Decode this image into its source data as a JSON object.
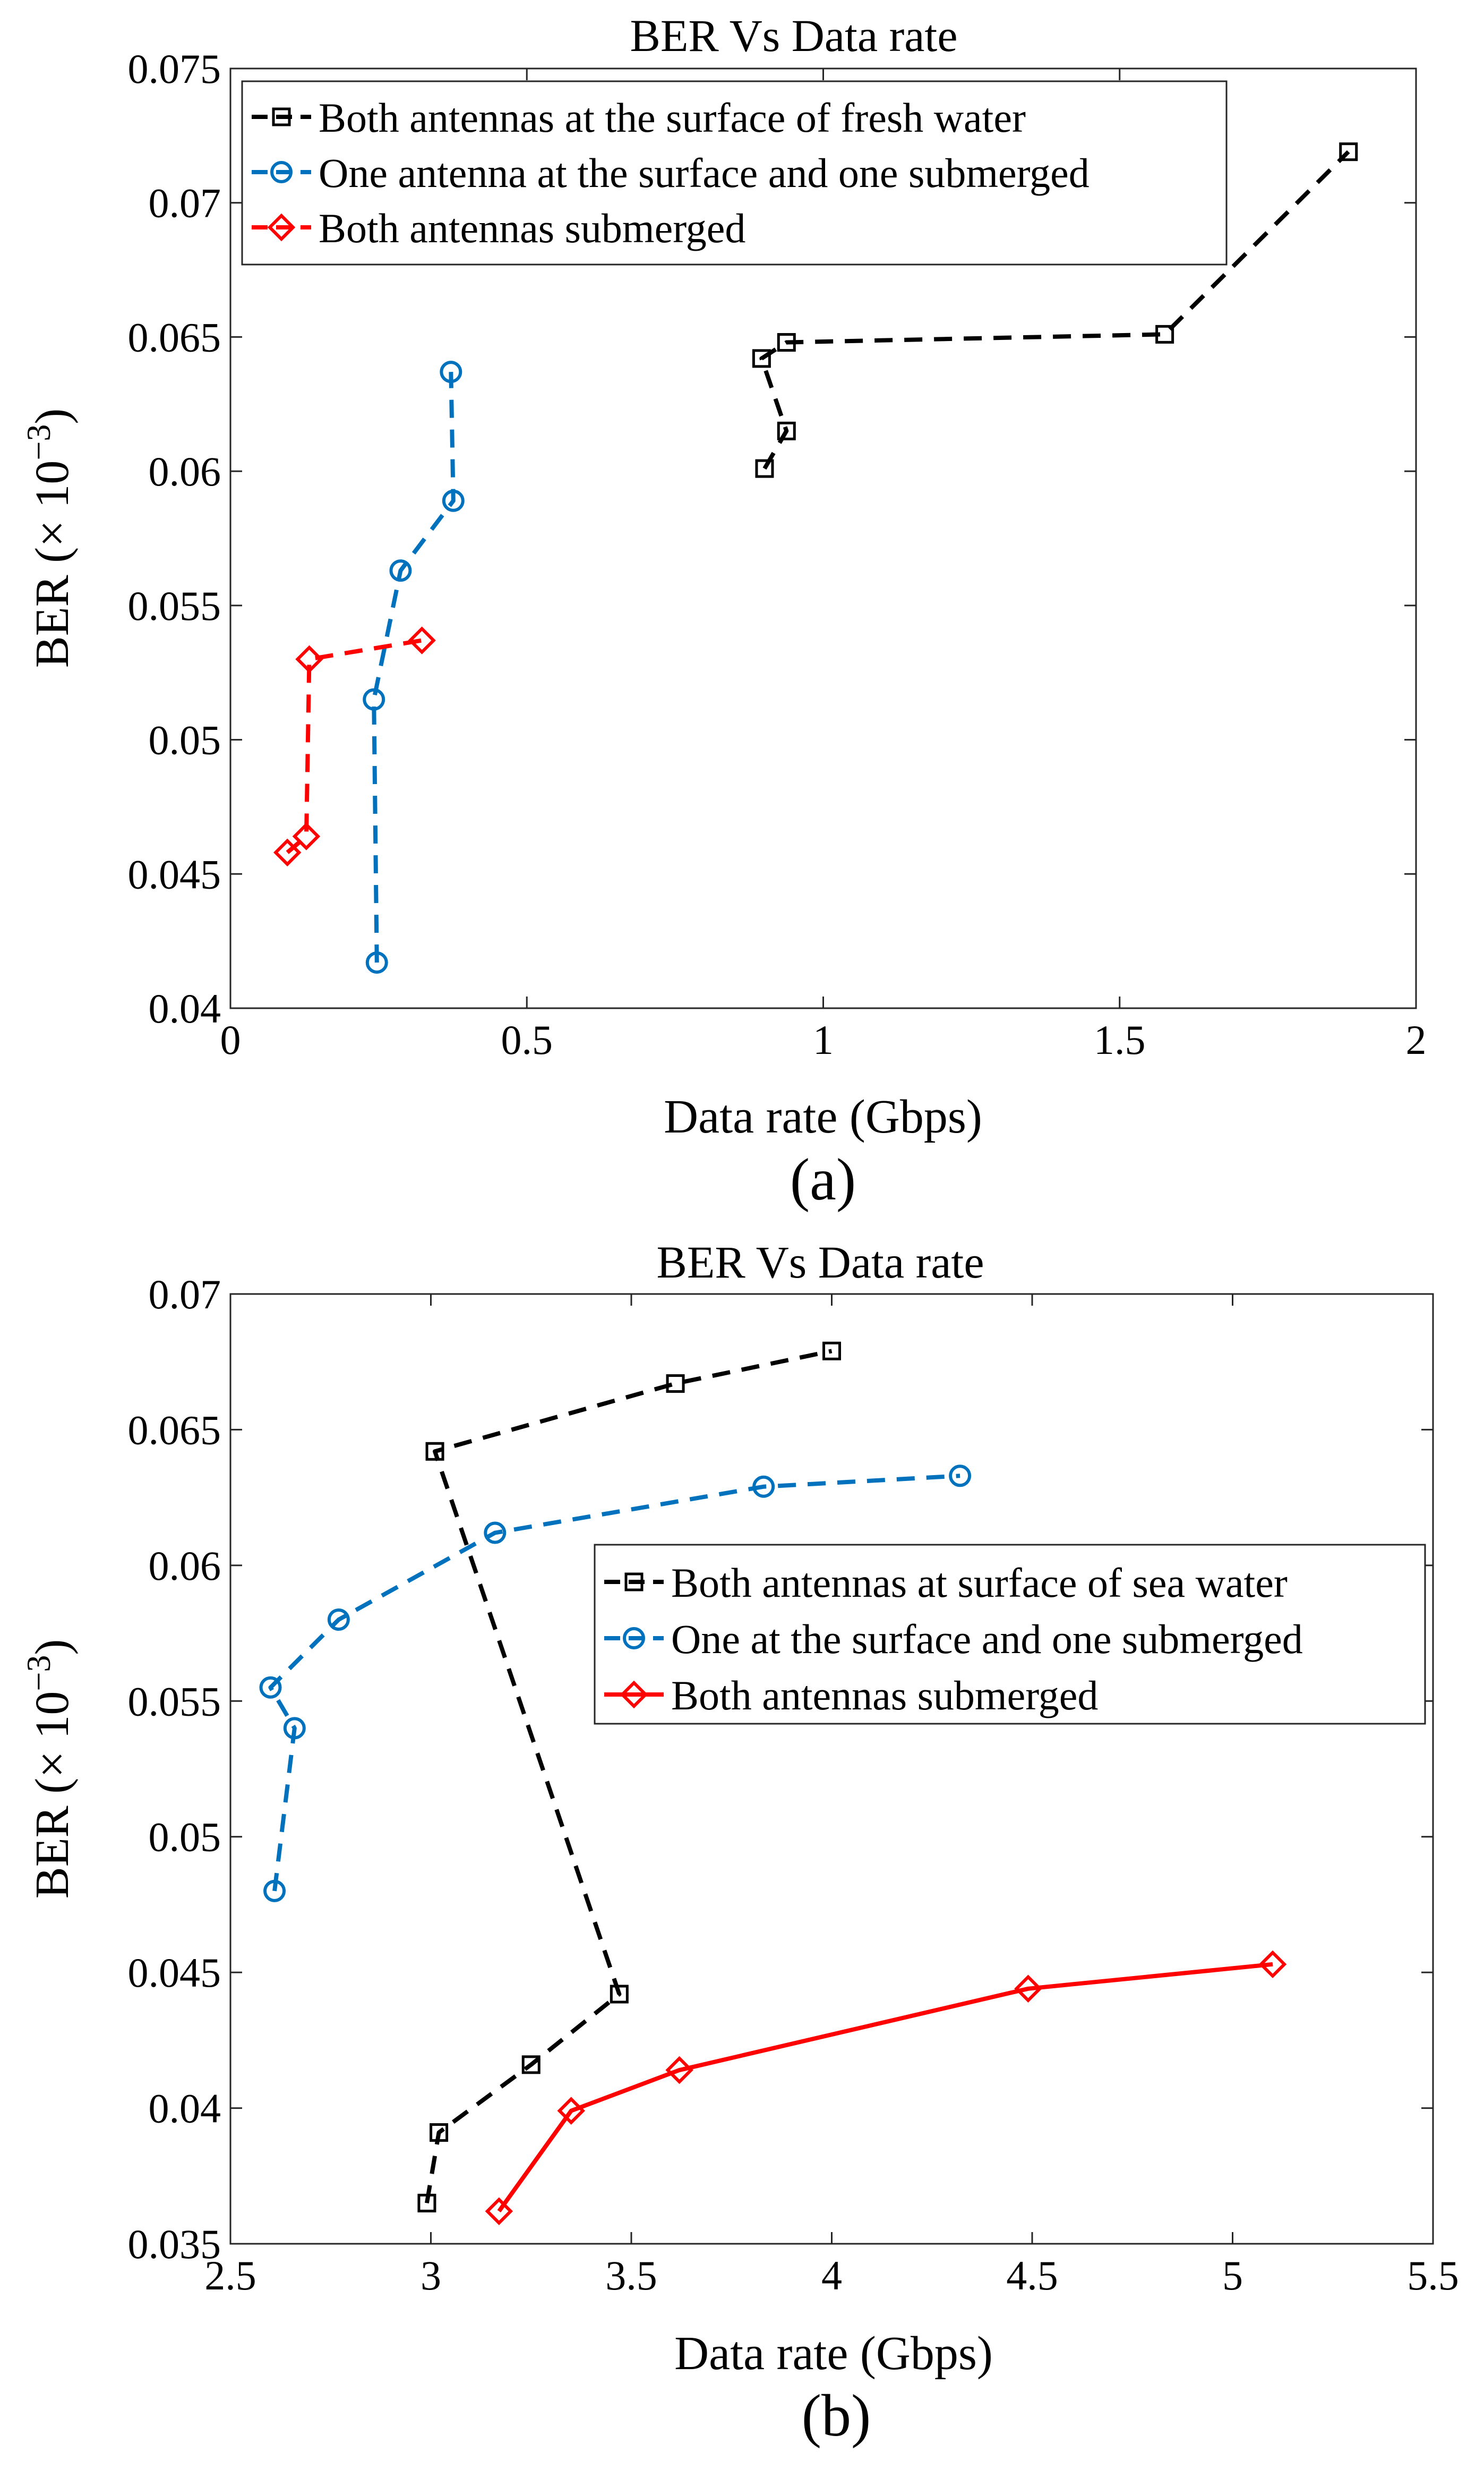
{
  "chart_data": [
    {
      "type": "line",
      "title": "BER Vs Data rate",
      "xlabel": "Data rate (Gbps)",
      "ylabel_main": "BER (× 10",
      "ylabel_exp": "−3",
      "ylabel_close": ")",
      "caption": "(a)",
      "xlim": [
        0,
        2
      ],
      "ylim": [
        0.04,
        0.075
      ],
      "xticks": [
        "0",
        "0.5",
        "1",
        "1.5",
        "2"
      ],
      "xtick_values": [
        0,
        0.5,
        1,
        1.5,
        2
      ],
      "yticks": [
        "0.04",
        "0.045",
        "0.05",
        "0.055",
        "0.06",
        "0.065",
        "0.07",
        "0.075"
      ],
      "ytick_values": [
        0.04,
        0.045,
        0.05,
        0.055,
        0.06,
        0.065,
        0.07,
        0.075
      ],
      "grid": false,
      "legend_position": "top-left",
      "series": [
        {
          "name": "Both antennas at the surface of fresh water",
          "color": "#000000",
          "line_style": "dashed",
          "marker": "square",
          "x": [
            0.901,
            0.938,
            0.896,
            0.938,
            1.576,
            1.886
          ],
          "y": [
            0.0601,
            0.0615,
            0.0642,
            0.0648,
            0.0651,
            0.0719
          ]
        },
        {
          "name": "One antenna at the surface and one submerged",
          "color": "#0072bd",
          "line_style": "dashed",
          "marker": "circle",
          "x": [
            0.247,
            0.242,
            0.287,
            0.376,
            0.372
          ],
          "y": [
            0.0417,
            0.0515,
            0.0563,
            0.0589,
            0.0637
          ]
        },
        {
          "name": "Both antennas submerged",
          "color": "#ff0000",
          "line_style": "dashed",
          "marker": "diamond",
          "x": [
            0.096,
            0.128,
            0.133,
            0.323
          ],
          "y": [
            0.0458,
            0.0464,
            0.053,
            0.0537
          ]
        }
      ]
    },
    {
      "type": "line",
      "title": "BER Vs Data rate",
      "xlabel": "Data rate (Gbps)",
      "ylabel_main": "BER (× 10",
      "ylabel_exp": "−3",
      "ylabel_close": ")",
      "caption": "(b)",
      "xlim": [
        2.5,
        5.5
      ],
      "ylim": [
        0.035,
        0.07
      ],
      "xticks": [
        "2.5",
        "3",
        "3.5",
        "4",
        "4.5",
        "5",
        "5.5"
      ],
      "xtick_values": [
        2.5,
        3,
        3.5,
        4,
        4.5,
        5,
        5.5
      ],
      "yticks": [
        "0.035",
        "0.04",
        "0.045",
        "0.05",
        "0.055",
        "0.06",
        "0.065",
        "0.07"
      ],
      "ytick_values": [
        0.035,
        0.04,
        0.045,
        0.05,
        0.055,
        0.06,
        0.065,
        0.07
      ],
      "grid": false,
      "legend_position": "middle-right",
      "series": [
        {
          "name": "Both antennas at surface of sea water",
          "color": "#000000",
          "line_style": "dashed",
          "marker": "square",
          "x": [
            2.99,
            3.02,
            3.25,
            3.47,
            3.01,
            3.61,
            4.0
          ],
          "y": [
            0.0365,
            0.0391,
            0.0416,
            0.0442,
            0.0642,
            0.0667,
            0.0679
          ]
        },
        {
          "name": "One at the surface and one submerged",
          "color": "#0072bd",
          "line_style": "dashed",
          "marker": "circle",
          "x": [
            2.61,
            2.66,
            2.6,
            2.77,
            3.16,
            3.83,
            4.32
          ],
          "y": [
            0.048,
            0.054,
            0.0555,
            0.058,
            0.0612,
            0.0629,
            0.0633
          ]
        },
        {
          "name": "Both antennas submerged",
          "color": "#ff0000",
          "line_style": "solid",
          "marker": "diamond",
          "x": [
            3.17,
            3.35,
            3.62,
            4.49,
            5.1
          ],
          "y": [
            0.0362,
            0.0399,
            0.0414,
            0.0444,
            0.0453
          ]
        }
      ]
    }
  ]
}
